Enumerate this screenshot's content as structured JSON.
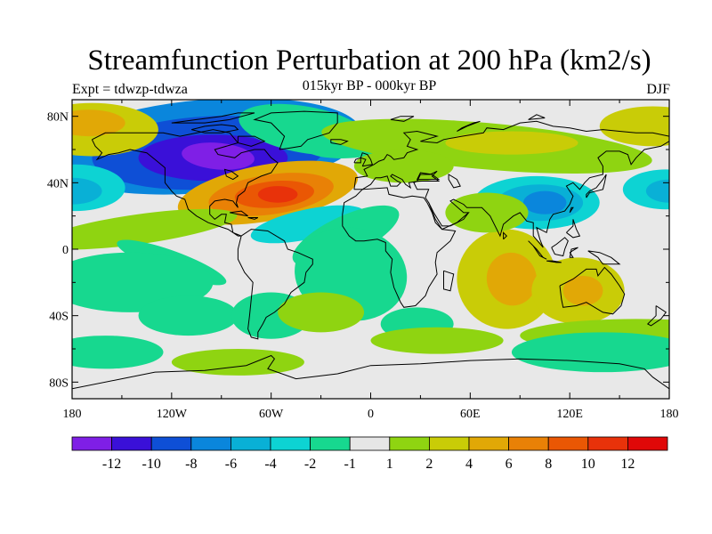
{
  "title": "Streamfunction Perturbation at 200 hPa (km2/s)",
  "subtitle": "015kyr BP - 000kyr BP",
  "experiment_label": "Expt = tdwzp-tdwza",
  "season": "DJF",
  "axes": {
    "lat_labels": [
      "80N",
      "40N",
      "0",
      "40S",
      "80S"
    ],
    "lat_values": [
      80,
      40,
      0,
      -40,
      -80
    ],
    "lon_labels": [
      "180",
      "120W",
      "60W",
      "0",
      "60E",
      "120E",
      "180"
    ],
    "lon_values": [
      -180,
      -120,
      -60,
      0,
      60,
      120,
      180
    ],
    "lon_range": [
      -180,
      180
    ],
    "lat_range": [
      -90,
      90
    ]
  },
  "colorbar": {
    "labels": [
      "-12",
      "-10",
      "-8",
      "-6",
      "-4",
      "-2",
      "-1",
      "1",
      "2",
      "4",
      "6",
      "8",
      "10",
      "12"
    ],
    "colors": [
      "#7f1fe6",
      "#3a10d8",
      "#0e4fd6",
      "#0a86dc",
      "#09b0d6",
      "#0dd3d3",
      "#17d88f",
      "#e6e6e6",
      "#8fd411",
      "#c9cc07",
      "#e1a806",
      "#e98106",
      "#ea5704",
      "#e8320a",
      "#e00808"
    ]
  },
  "chart_data": {
    "type": "heatmap",
    "title": "Streamfunction Perturbation at 200 hPa (km2/s)",
    "subtitle": "015kyr BP - 000kyr BP",
    "units": "km2/s",
    "levels": [
      -12,
      -10,
      -8,
      -6,
      -4,
      -2,
      -1,
      1,
      2,
      4,
      6,
      8,
      10,
      12
    ],
    "features": [
      {
        "name": "North America low",
        "lon": -95,
        "lat": 55,
        "value": -9
      },
      {
        "name": "North Atlantic high",
        "lon": -58,
        "lat": 33,
        "value": 10
      },
      {
        "name": "Subtropical Atlantic low",
        "lon": -40,
        "lat": 15,
        "value": -5
      },
      {
        "name": "East Asia low",
        "lon": 105,
        "lat": 28,
        "value": -8
      },
      {
        "name": "West Pacific low",
        "lon": -178,
        "lat": 35,
        "value": -5
      },
      {
        "name": "East Pacific low",
        "lon": 175,
        "lat": 35,
        "value": -5
      },
      {
        "name": "Arctic Asia high",
        "lon": 85,
        "lat": 65,
        "value": 4
      },
      {
        "name": "Indian Ocean high",
        "lon": 80,
        "lat": -20,
        "value": 5
      },
      {
        "name": "South Pacific high",
        "lon": 120,
        "lat": -25,
        "value": 4
      },
      {
        "name": "Alaska high",
        "lon": -165,
        "lat": 75,
        "value": 5
      },
      {
        "name": "South Atlantic low",
        "lon": -10,
        "lat": -25,
        "value": -3
      }
    ]
  }
}
